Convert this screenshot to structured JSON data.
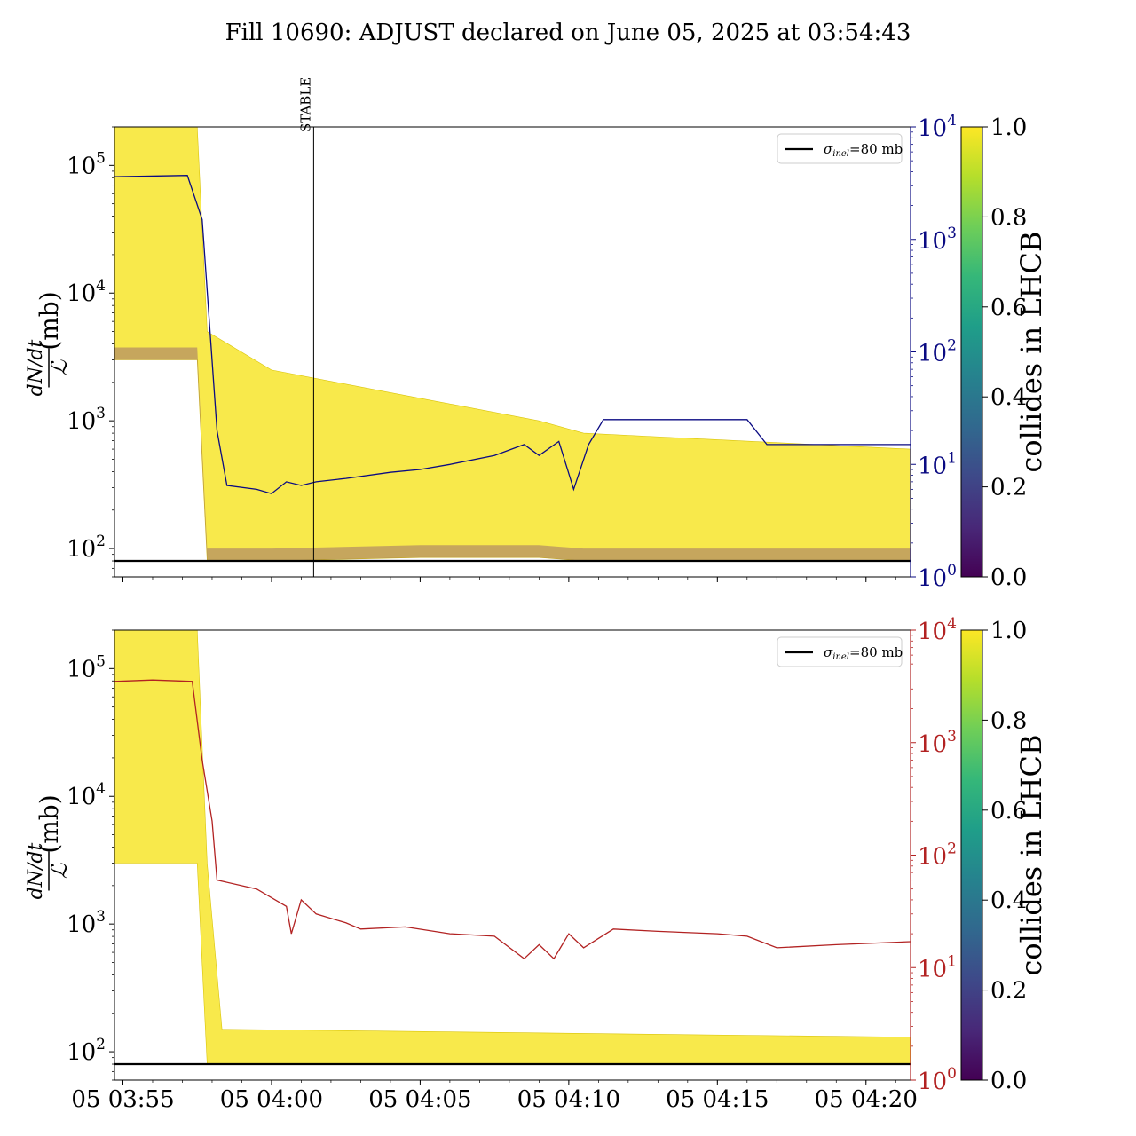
{
  "title": "Fill 10690: ADJUST declared on June 05, 2025 at 03:54:43",
  "chart_data": [
    {
      "panel": "top",
      "type": "line",
      "ylabel_numerator": "dN/dt",
      "ylabel_denominator": "ℒ",
      "ylabel_unit": "(mb)",
      "yscale": "log",
      "ylim": [
        60,
        200000
      ],
      "y_ticks": [
        {
          "base": "10",
          "exp": "2",
          "value": 100
        },
        {
          "base": "10",
          "exp": "3",
          "value": 1000
        },
        {
          "base": "10",
          "exp": "4",
          "value": 10000
        },
        {
          "base": "10",
          "exp": "5",
          "value": 100000
        }
      ],
      "secondary_yscale": "log",
      "secondary_ylim": [
        1,
        10000
      ],
      "secondary_color": "#0a0a82",
      "secondary_ticks": [
        {
          "base": "10",
          "exp": "0",
          "value": 1
        },
        {
          "base": "10",
          "exp": "1",
          "value": 10
        },
        {
          "base": "10",
          "exp": "2",
          "value": 100
        },
        {
          "base": "10",
          "exp": "3",
          "value": 1000
        },
        {
          "base": "10",
          "exp": "4",
          "value": 10000
        }
      ],
      "xlim": [
        "05 03:54:43",
        "05 04:21:30"
      ],
      "x_ticks": [
        "05 03:55",
        "05 04:00",
        "05 04:05",
        "05 04:10",
        "05 04:15",
        "05 04:20"
      ],
      "x_tick_labels_shown": false,
      "annotation": {
        "text": "STABLE",
        "x": "05 04:01:25"
      },
      "legend": {
        "label_sigma": "σ",
        "label_sub": "inel",
        "label_rest": "=80 mb",
        "placement": "top-right"
      },
      "reference_line": {
        "name": "σinel=80 mb",
        "y": 80
      },
      "series": [
        {
          "name": "",
          "axis": "secondary",
          "color": "#0a0a82",
          "x": [
            "05 03:54:43",
            "05 03:57:10",
            "05 03:57:40",
            "05 03:58:10",
            "05 03:58:30",
            "05 03:59:30",
            "05 04:00:00",
            "05 04:00:30",
            "05 04:01:00",
            "05 04:01:30",
            "05 04:02:30",
            "05 04:04:00",
            "05 04:05:00",
            "05 04:06:00",
            "05 04:07:30",
            "05 04:08:30",
            "05 04:09:00",
            "05 04:09:40",
            "05 04:10:10",
            "05 04:10:40",
            "05 04:11:10",
            "05 04:13:30",
            "05 04:16:00",
            "05 04:16:40",
            "05 04:19:00",
            "05 04:21:30"
          ],
          "y": [
            3600,
            3700,
            1500,
            20,
            6.5,
            6,
            5.5,
            7,
            6.5,
            7,
            7.5,
            8.5,
            9,
            10,
            12,
            15,
            12,
            16,
            6,
            15,
            25,
            25,
            25,
            15,
            15,
            15
          ]
        }
      ],
      "envelope_description": "",
      "bands": [
        {
          "x": [
            "05 03:54:43",
            "05 03:57:30",
            "05 03:57:50",
            "05 04:00:00",
            "05 04:05:00",
            "05 04:09:00",
            "05 04:10:30",
            "05 04:21:30"
          ],
          "upper": [
            200000,
            200000,
            5000,
            2500,
            1500,
            1000,
            800,
            600
          ],
          "lower": [
            3000,
            3000,
            80,
            80,
            85,
            85,
            80,
            80
          ]
        }
      ]
    },
    {
      "panel": "bottom",
      "type": "line",
      "ylabel_numerator": "dN/dt",
      "ylabel_denominator": "ℒ",
      "ylabel_unit": "(mb)",
      "yscale": "log",
      "ylim": [
        60,
        200000
      ],
      "y_ticks": [
        {
          "base": "10",
          "exp": "2",
          "value": 100
        },
        {
          "base": "10",
          "exp": "3",
          "value": 1000
        },
        {
          "base": "10",
          "exp": "4",
          "value": 10000
        },
        {
          "base": "10",
          "exp": "5",
          "value": 100000
        }
      ],
      "secondary_yscale": "log",
      "secondary_ylim": [
        1,
        10000
      ],
      "secondary_color": "#b22222",
      "secondary_ticks": [
        {
          "base": "10",
          "exp": "0",
          "value": 1
        },
        {
          "base": "10",
          "exp": "1",
          "value": 10
        },
        {
          "base": "10",
          "exp": "2",
          "value": 100
        },
        {
          "base": "10",
          "exp": "3",
          "value": 1000
        },
        {
          "base": "10",
          "exp": "4",
          "value": 10000
        }
      ],
      "xlim": [
        "05 03:54:43",
        "05 04:21:30"
      ],
      "x_ticks": [
        "05 03:55",
        "05 04:00",
        "05 04:05",
        "05 04:10",
        "05 04:15",
        "05 04:20"
      ],
      "x_tick_labels_shown": true,
      "legend": {
        "label_sigma": "σ",
        "label_sub": "inel",
        "label_rest": "=80 mb",
        "placement": "top-right"
      },
      "reference_line": {
        "name": "σinel=80 mb",
        "y": 80
      },
      "series": [
        {
          "name": "",
          "axis": "secondary",
          "color": "#b22222",
          "x": [
            "05 03:54:43",
            "05 03:56:00",
            "05 03:57:20",
            "05 03:57:40",
            "05 03:58:00",
            "05 03:58:10",
            "05 03:59:30",
            "05 04:00:30",
            "05 04:00:40",
            "05 04:01:00",
            "05 04:01:30",
            "05 04:02:30",
            "05 04:03:00",
            "05 04:04:30",
            "05 04:06:00",
            "05 04:07:30",
            "05 04:08:30",
            "05 04:09:00",
            "05 04:09:30",
            "05 04:10:00",
            "05 04:10:30",
            "05 04:11:30",
            "05 04:13:00",
            "05 04:15:00",
            "05 04:16:00",
            "05 04:17:00",
            "05 04:19:00",
            "05 04:21:30"
          ],
          "y": [
            3500,
            3600,
            3500,
            700,
            200,
            60,
            50,
            35,
            20,
            40,
            30,
            25,
            22,
            23,
            20,
            19,
            12,
            16,
            12,
            20,
            15,
            22,
            21,
            20,
            19,
            15,
            16,
            17
          ]
        }
      ],
      "bands": [
        {
          "x": [
            "05 03:54:43",
            "05 03:57:30",
            "05 03:57:50",
            "05 03:58:20",
            "05 04:21:30"
          ],
          "upper": [
            200000,
            200000,
            3000,
            150,
            130
          ],
          "lower": [
            3000,
            3000,
            80,
            80,
            80
          ]
        }
      ]
    }
  ],
  "colorbar": {
    "label": "collides in LHCB",
    "ticks": [
      "0.0",
      "0.2",
      "0.4",
      "0.6",
      "0.8",
      "1.0"
    ],
    "colormap_stops": [
      "#440154",
      "#482878",
      "#3e4989",
      "#31688e",
      "#26828e",
      "#1f9e89",
      "#35b779",
      "#6ece58",
      "#b5de2b",
      "#fde725"
    ]
  }
}
